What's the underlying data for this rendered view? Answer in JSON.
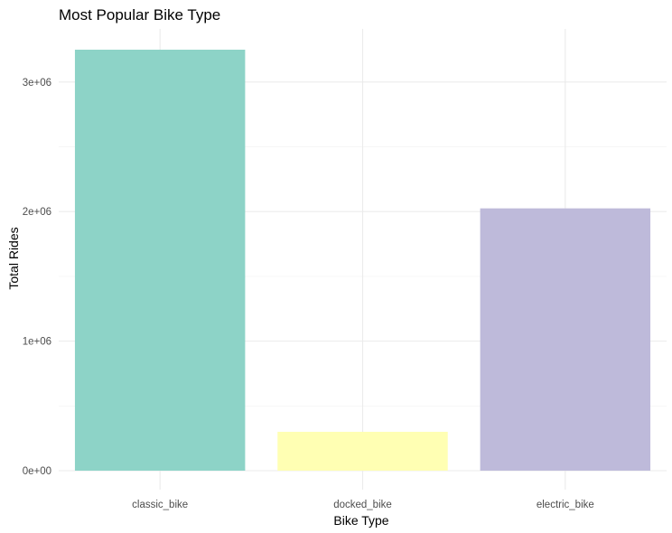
{
  "chart_data": {
    "type": "bar",
    "title": "Most Popular Bike Type",
    "xlabel": "Bike Type",
    "ylabel": "Total Rides",
    "categories": [
      "classic_bike",
      "docked_bike",
      "electric_bike"
    ],
    "values": [
      3250000,
      300000,
      2025000
    ],
    "colors": [
      "#8dd3c7",
      "#ffffb3",
      "#bebada"
    ],
    "ylim": [
      0,
      3250000
    ],
    "yticks": [
      0,
      1000000,
      2000000,
      3000000
    ],
    "ytick_labels": [
      "0e+00",
      "1e+06",
      "2e+06",
      "3e+06"
    ],
    "grid": true,
    "legend": "none"
  }
}
